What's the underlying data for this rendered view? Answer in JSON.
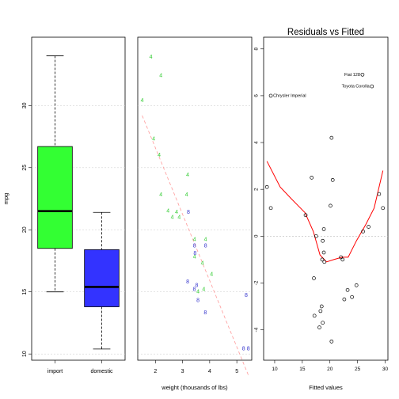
{
  "chart_data": [
    {
      "type": "boxplot",
      "title": "",
      "xlabel": "",
      "ylabel": "mpg",
      "ylim": [
        9.5,
        35.5
      ],
      "yticks": [
        10,
        15,
        20,
        25,
        30
      ],
      "grid": "horizontal dashed",
      "categories": [
        "import",
        "domestic"
      ],
      "boxes": [
        {
          "name": "import",
          "color": "#33ff33",
          "whisker_low": 15,
          "q1": 18.5,
          "median": 21.5,
          "q3": 26.7,
          "whisker_high": 34
        },
        {
          "name": "domestic",
          "color": "#3333ff",
          "whisker_low": 10.4,
          "q1": 13.8,
          "median": 15.4,
          "q3": 18.4,
          "whisker_high": 21.4
        }
      ]
    },
    {
      "type": "scatter",
      "title": "",
      "xlabel": "weight (thousands of lbs)",
      "ylabel": "",
      "xlim": [
        1.35,
        5.55
      ],
      "ylim": [
        9.5,
        35.5
      ],
      "xticks": [
        2,
        3,
        4,
        5
      ],
      "grid": "horizontal dashed",
      "fit_line": {
        "color": "#ff9999",
        "from": [
          1.513,
          29.2
        ],
        "to": [
          5.424,
          8.3
        ]
      },
      "series": [
        {
          "marker": "4",
          "color": "#33cc33",
          "points": [
            [
              1.835,
              33.9
            ],
            [
              2.2,
              32.4
            ],
            [
              1.513,
              30.4
            ],
            [
              1.935,
              27.3
            ],
            [
              2.14,
              26.0
            ],
            [
              3.19,
              24.4
            ],
            [
              2.2,
              22.8
            ],
            [
              3.15,
              22.8
            ],
            [
              2.465,
              21.5
            ],
            [
              2.62,
              21.0
            ],
            [
              2.875,
              21.0
            ],
            [
              2.78,
              21.4
            ],
            [
              3.44,
              19.2
            ],
            [
              3.44,
              17.8
            ],
            [
              3.57,
              15.0
            ],
            [
              3.845,
              19.2
            ],
            [
              4.07,
              16.4
            ],
            [
              3.73,
              17.3
            ],
            [
              3.78,
              15.2
            ]
          ]
        },
        {
          "marker": "8",
          "color": "#3333cc",
          "points": [
            [
              3.215,
              21.4
            ],
            [
              3.44,
              18.7
            ],
            [
              3.46,
              18.1
            ],
            [
              3.57,
              14.3
            ],
            [
              3.19,
              15.8
            ],
            [
              3.52,
              15.5
            ],
            [
              3.435,
              15.2
            ],
            [
              3.84,
              13.3
            ],
            [
              3.85,
              18.7
            ],
            [
              5.25,
              10.4
            ],
            [
              5.424,
              10.4
            ],
            [
              5.345,
              14.7
            ]
          ]
        }
      ]
    },
    {
      "type": "scatter",
      "title": "Residuals vs Fitted",
      "xlabel": "Fitted values",
      "ylabel": "",
      "xlim": [
        8.0,
        30.5
      ],
      "ylim": [
        -5.3,
        8.5
      ],
      "xticks": [
        10,
        15,
        20,
        25,
        30
      ],
      "yticks": [
        -4,
        -2,
        0,
        2,
        4,
        6,
        8
      ],
      "grid": "zero line dashed",
      "points": [
        [
          8.6,
          2.1
        ],
        [
          9.3,
          1.2
        ],
        [
          15.6,
          0.9
        ],
        [
          16.7,
          2.5
        ],
        [
          20.3,
          4.2
        ],
        [
          20.5,
          2.4
        ],
        [
          20.1,
          1.3
        ],
        [
          18.9,
          0.3
        ],
        [
          17.5,
          0.0
        ],
        [
          18.7,
          -0.2
        ],
        [
          18.9,
          -0.7
        ],
        [
          18.6,
          -1.0
        ],
        [
          19.0,
          -1.1
        ],
        [
          22.0,
          -0.9
        ],
        [
          22.3,
          -1.0
        ],
        [
          17.1,
          -1.8
        ],
        [
          23.2,
          -2.3
        ],
        [
          24.8,
          -2.1
        ],
        [
          24.0,
          -2.6
        ],
        [
          22.6,
          -2.7
        ],
        [
          18.5,
          -3.0
        ],
        [
          18.3,
          -3.2
        ],
        [
          17.2,
          -3.4
        ],
        [
          18.7,
          -3.7
        ],
        [
          18.1,
          -3.9
        ],
        [
          20.3,
          -4.5
        ],
        [
          26.0,
          0.2
        ],
        [
          27.0,
          0.4
        ],
        [
          28.9,
          1.8
        ],
        [
          29.6,
          1.2
        ],
        [
          25.9,
          6.9
        ],
        [
          27.6,
          6.4
        ],
        [
          9.3,
          6.0
        ]
      ],
      "labeled_points": [
        {
          "label": "Fiat 128",
          "x": 25.9,
          "y": 6.9
        },
        {
          "label": "Toyota Corolla",
          "x": 27.6,
          "y": 6.4
        },
        {
          "label": "Chrysler Imperial",
          "x": 9.3,
          "y": 6.0
        }
      ],
      "smoother": {
        "color": "#ff0000",
        "points": [
          [
            8.6,
            3.2
          ],
          [
            11.0,
            2.1
          ],
          [
            13.0,
            1.6
          ],
          [
            15.5,
            1.0
          ],
          [
            17.0,
            0.2
          ],
          [
            18.2,
            -0.8
          ],
          [
            19.4,
            -1.1
          ],
          [
            20.7,
            -1.0
          ],
          [
            22.2,
            -0.9
          ],
          [
            23.3,
            -0.9
          ],
          [
            24.8,
            -0.2
          ],
          [
            26.5,
            0.5
          ],
          [
            28.0,
            1.2
          ],
          [
            29.6,
            2.8
          ]
        ]
      }
    }
  ]
}
